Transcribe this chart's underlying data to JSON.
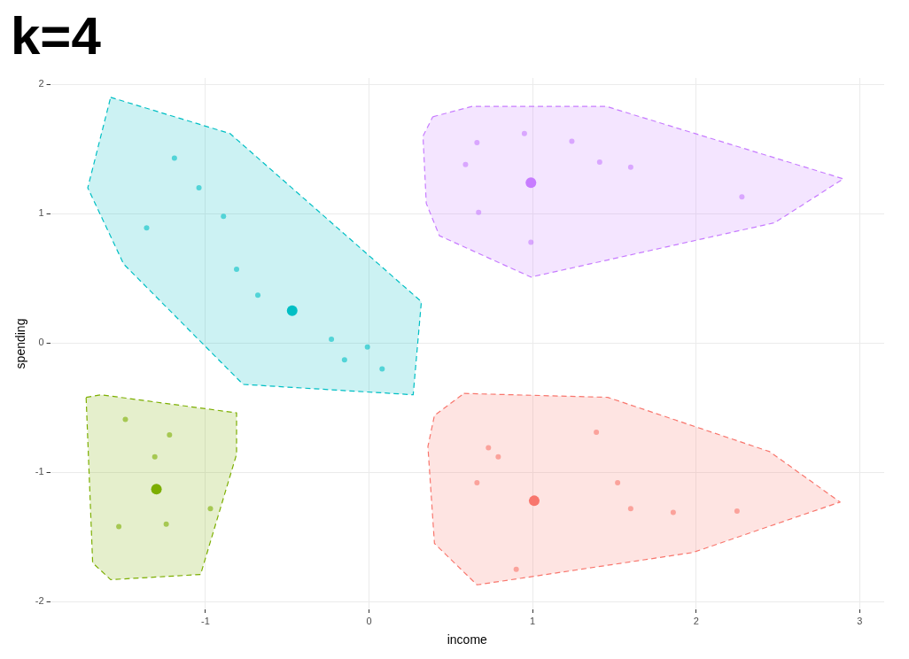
{
  "chart_data": {
    "type": "scatter",
    "title": "k=4",
    "xlabel": "income",
    "ylabel": "spending",
    "xlim": [
      -1.95,
      3.15
    ],
    "ylim": [
      -2.06,
      2.05
    ],
    "xticks": [
      -1,
      0,
      1,
      2,
      3
    ],
    "yticks": [
      -2,
      -1,
      0,
      1,
      2
    ],
    "grid": true,
    "legend": false,
    "series": [
      {
        "type": "area",
        "line_style": "dashed",
        "color": "#f8766d",
        "x": [
          0.58,
          1.46,
          2.45,
          2.88,
          1.98,
          0.66,
          0.4,
          0.36,
          0.4,
          0.58
        ],
        "values": [
          -0.39,
          -0.42,
          -0.84,
          -1.23,
          -1.62,
          -1.87,
          -1.55,
          -0.8,
          -0.56,
          -0.39
        ]
      },
      {
        "type": "area",
        "line_style": "dashed",
        "color": "#7cae00",
        "x": [
          -1.73,
          -1.64,
          -0.81,
          -0.81,
          -1.03,
          -1.58,
          -1.69,
          -1.73
        ],
        "values": [
          -0.42,
          -0.4,
          -0.54,
          -0.86,
          -1.79,
          -1.83,
          -1.7,
          -0.42
        ]
      },
      {
        "type": "area",
        "line_style": "dashed",
        "color": "#00bfc4",
        "x": [
          -1.58,
          -0.85,
          0.32,
          0.27,
          -0.77,
          -1.5,
          -1.72,
          -1.58
        ],
        "values": [
          1.9,
          1.62,
          0.32,
          -0.4,
          -0.32,
          0.61,
          1.2,
          1.9
        ]
      },
      {
        "type": "area",
        "line_style": "dashed",
        "color": "#c77cff",
        "x": [
          0.39,
          0.63,
          1.45,
          2.9,
          2.48,
          0.99,
          0.43,
          0.35,
          0.33,
          0.39
        ],
        "values": [
          1.75,
          1.83,
          1.83,
          1.27,
          0.93,
          0.51,
          0.83,
          1.08,
          1.6,
          1.75
        ]
      },
      {
        "type": "scatter",
        "marker": "circle",
        "color": "#f8766d",
        "x": [
          0.79,
          0.66,
          1.39,
          1.52,
          1.6,
          1.86,
          2.25,
          0.9,
          0.73
        ],
        "values": [
          -0.88,
          -1.08,
          -0.69,
          -1.08,
          -1.28,
          -1.31,
          -1.3,
          -1.75,
          -0.81
        ]
      },
      {
        "type": "scatter",
        "marker": "circle",
        "color": "#7cae00",
        "x": [
          -1.49,
          -1.22,
          -1.31,
          -0.97,
          -1.24,
          -1.53
        ],
        "values": [
          -0.59,
          -0.71,
          -0.88,
          -1.28,
          -1.4,
          -1.42
        ]
      },
      {
        "type": "scatter",
        "marker": "circle",
        "color": "#00bfc4",
        "x": [
          -1.19,
          -1.04,
          -1.36,
          -0.89,
          -0.81,
          -0.68,
          -0.23,
          -0.01,
          0.08,
          -0.15
        ],
        "values": [
          1.43,
          1.2,
          0.89,
          0.98,
          0.57,
          0.37,
          0.03,
          -0.03,
          -0.2,
          -0.13
        ]
      },
      {
        "type": "scatter",
        "marker": "circle",
        "color": "#c77cff",
        "x": [
          0.59,
          0.66,
          0.95,
          1.24,
          1.41,
          1.6,
          2.28,
          0.99,
          0.67
        ],
        "values": [
          1.38,
          1.55,
          1.62,
          1.56,
          1.4,
          1.36,
          1.13,
          0.78,
          1.01
        ]
      },
      {
        "type": "scatter",
        "marker": "circle",
        "colors": [
          "#f8766d",
          "#7cae00",
          "#00bfc4",
          "#c77cff"
        ],
        "x": [
          1.01,
          -1.3,
          -0.47,
          0.99
        ],
        "values": [
          -1.22,
          -1.13,
          0.25,
          1.24
        ]
      }
    ]
  }
}
